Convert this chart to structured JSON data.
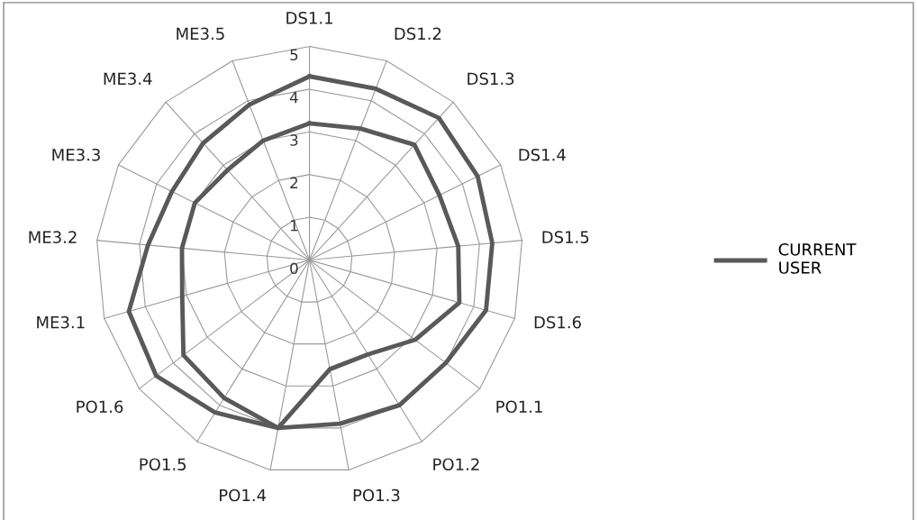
{
  "chart_data": {
    "type": "radar",
    "categories": [
      "DS1.1",
      "DS1.2",
      "DS1.3",
      "DS1.4",
      "DS1.5",
      "DS1.6",
      "PO1.1",
      "PO1.2",
      "PO1.3",
      "PO1.4",
      "PO1.5",
      "PO1.6",
      "ME3.1",
      "ME3.2",
      "ME3.3",
      "ME3.4",
      "ME3.5"
    ],
    "series": [
      {
        "name": "CURRENT USER",
        "color": "#595959",
        "values": [
          4.3,
          4.3,
          4.5,
          4.4,
          4.3,
          4.3,
          4.0,
          4.0,
          3.9,
          4.0,
          4.2,
          4.5,
          4.4,
          3.8,
          3.6,
          3.7,
          3.9
        ]
      },
      {
        "color": "#595959",
        "values": [
          3.2,
          3.3,
          3.65,
          3.4,
          3.5,
          3.65,
          3.1,
          2.6,
          2.6,
          4.0,
          3.8,
          3.7,
          3.1,
          3.0,
          3.0,
          2.85,
          3.0
        ]
      }
    ],
    "ylim": [
      0,
      5
    ],
    "yticks": [
      0,
      1,
      2,
      3,
      4,
      5
    ],
    "grid": true,
    "legend": "right",
    "marker": "none",
    "line_style": "solid"
  }
}
